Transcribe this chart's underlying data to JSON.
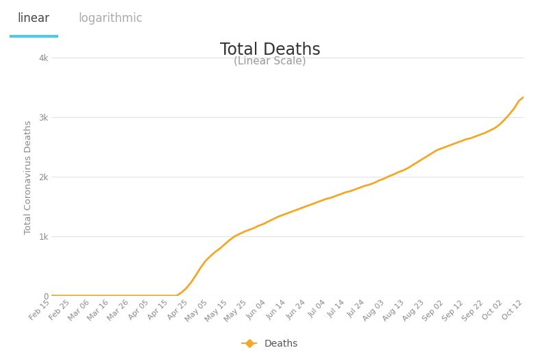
{
  "title": "Total Deaths",
  "subtitle": "(Linear Scale)",
  "ylabel": "Total Coronavirus Deaths",
  "tab_linear": "linear",
  "tab_logarithmic": "logarithmic",
  "legend_label": "Deaths",
  "line_color": "#f5a623",
  "line_width": 2.0,
  "background_color": "#ffffff",
  "grid_color": "#e2e2e2",
  "tab_underline_color": "#4ec9e8",
  "x_labels": [
    "Feb 15",
    "Feb 25",
    "Mar 06",
    "Mar 16",
    "Mar 26",
    "Apr 05",
    "Apr 15",
    "Apr 25",
    "May 05",
    "May 15",
    "May 25",
    "Jun 04",
    "Jun 14",
    "Jun 24",
    "Jul 04",
    "Jul 14",
    "Jul 24",
    "Aug 03",
    "Aug 13",
    "Aug 23",
    "Sep 02",
    "Sep 12",
    "Sep 22",
    "Oct 02",
    "Oct 12"
  ],
  "data_points": [
    5,
    5,
    5,
    5,
    5,
    5,
    5,
    5,
    5,
    5,
    5,
    5,
    5,
    5,
    5,
    5,
    5,
    5,
    5,
    5,
    5,
    5,
    5,
    5,
    5,
    5,
    5,
    60,
    130,
    230,
    350,
    480,
    590,
    670,
    740,
    800,
    870,
    940,
    1000,
    1040,
    1080,
    1110,
    1140,
    1180,
    1210,
    1250,
    1290,
    1330,
    1360,
    1390,
    1420,
    1450,
    1480,
    1510,
    1540,
    1570,
    1600,
    1630,
    1650,
    1680,
    1710,
    1740,
    1760,
    1790,
    1820,
    1850,
    1870,
    1900,
    1940,
    1970,
    2010,
    2040,
    2080,
    2110,
    2150,
    2200,
    2250,
    2300,
    2350,
    2400,
    2450,
    2480,
    2510,
    2540,
    2570,
    2600,
    2630,
    2650,
    2680,
    2710,
    2740,
    2780,
    2820,
    2880,
    2960,
    3050,
    3150,
    3280,
    3340
  ],
  "ylim": [
    0,
    4000
  ],
  "yticks": [
    0,
    1000,
    2000,
    3000,
    4000
  ],
  "ytick_labels": [
    "0",
    "1k",
    "2k",
    "3k",
    "4k"
  ],
  "title_fontsize": 17,
  "subtitle_fontsize": 11,
  "axis_label_fontsize": 9.5,
  "tick_fontsize": 8.5
}
